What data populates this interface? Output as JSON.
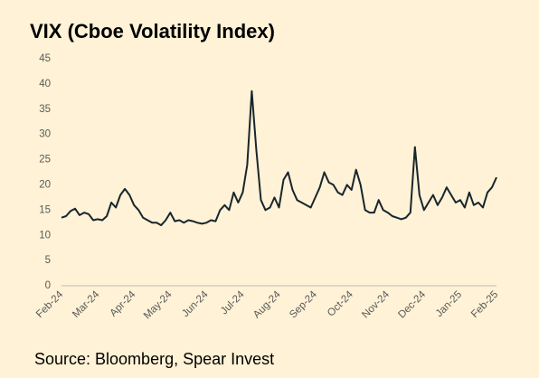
{
  "chart_data": {
    "type": "line",
    "title": "VIX (Cboe Volatility Index)",
    "source": "Source: Bloomberg, Spear Invest",
    "categories": [
      "Feb-24",
      null,
      null,
      null,
      null,
      null,
      null,
      null,
      "Mar-24",
      null,
      null,
      null,
      null,
      null,
      null,
      null,
      "Apr-24",
      null,
      null,
      null,
      null,
      null,
      null,
      null,
      "May-24",
      null,
      null,
      null,
      null,
      null,
      null,
      null,
      "Jun-24",
      null,
      null,
      null,
      null,
      null,
      null,
      null,
      "Jul-24",
      null,
      null,
      null,
      null,
      null,
      null,
      null,
      "Aug-24",
      null,
      null,
      null,
      null,
      null,
      null,
      null,
      "Sep-24",
      null,
      null,
      null,
      null,
      null,
      null,
      null,
      "Oct-24",
      null,
      null,
      null,
      null,
      null,
      null,
      null,
      "Nov-24",
      null,
      null,
      null,
      null,
      null,
      null,
      null,
      "Dec-24",
      null,
      null,
      null,
      null,
      null,
      null,
      null,
      "Jan-25",
      null,
      null,
      null,
      null,
      null,
      null,
      null,
      "Feb-25"
    ],
    "series": [
      {
        "name": "VIX",
        "color": "#17262e",
        "values": [
          13.5,
          13.8,
          14.8,
          15.3,
          14,
          14.5,
          14.2,
          13,
          13.2,
          13,
          13.8,
          16.5,
          15.5,
          18,
          19.2,
          18,
          16,
          15,
          13.5,
          13,
          12.5,
          12.5,
          12,
          13,
          14.5,
          12.8,
          13,
          12.5,
          13,
          12.8,
          12.5,
          12.3,
          12.5,
          13,
          12.8,
          15,
          16,
          15,
          18.5,
          16.5,
          18.5,
          24,
          38.6,
          27,
          17,
          15,
          15.5,
          17.5,
          15.5,
          21,
          22.5,
          19,
          17,
          16.5,
          16,
          15.5,
          17.5,
          19.5,
          22.5,
          20.5,
          20,
          18.5,
          18,
          20,
          19,
          23,
          20,
          15,
          14.5,
          14.5,
          17,
          15,
          14.5,
          13.8,
          13.5,
          13.2,
          13.5,
          14.5,
          27.5,
          18,
          15,
          16.5,
          18,
          16,
          17.5,
          19.5,
          18,
          16.5,
          17,
          15.5,
          18.5,
          16,
          16.5,
          15.5,
          18.5,
          19.5,
          21.5
        ]
      }
    ],
    "ylim": [
      0,
      45
    ],
    "yticks": [
      0,
      5,
      10,
      15,
      20,
      25,
      30,
      35,
      40,
      45
    ],
    "grid": false
  }
}
